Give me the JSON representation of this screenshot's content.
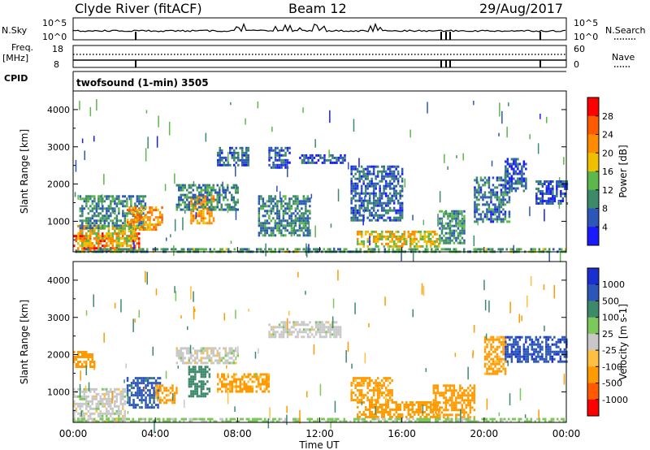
{
  "header": {
    "station": "Clyde River (fitACF)",
    "beam": "Beam 12",
    "date": "29/Aug/2017"
  },
  "top_panels": {
    "nsky_label": "N.Sky",
    "nsky_ticks": [
      "10^5",
      "10^0"
    ],
    "nsearch_label": "N.Search",
    "freq_label": "Freq.",
    "freq_unit": "[MHz]",
    "freq_ticks": [
      "18",
      "8"
    ],
    "nave_label": "Nave",
    "nave_ticks": [
      "60",
      "0"
    ],
    "cpid_label": "CPID",
    "cpid_value": "twofsound (1-min) 3505"
  },
  "colors": {
    "power": [
      "#1a1aff",
      "#2c57b8",
      "#3d8a6a",
      "#5cb84a",
      "#f0c000",
      "#ff8c00",
      "#ff5a00",
      "#ff0000"
    ],
    "velocity": [
      "#ff0000",
      "#ff5a00",
      "#ff9a00",
      "#ffbf40",
      "#c8c8c8",
      "#7cc85a",
      "#3d8a6a",
      "#2c57b8",
      "#1a2fcf"
    ]
  },
  "chart_data": [
    {
      "type": "heatmap",
      "title": "Power",
      "colorbar_label": "Power [dB]",
      "colorbar_ticks": [
        "28",
        "24",
        "20",
        "16",
        "12",
        "8",
        "4"
      ],
      "ylabel": "Slant Range [km]",
      "yticks": [
        "4000",
        "3000",
        "2000",
        "1000"
      ],
      "ylim": [
        180,
        4500
      ],
      "xlim": [
        0,
        24
      ],
      "xlabel": "",
      "features": [
        {
          "t0": 0.0,
          "t1": 3.2,
          "r0": 200,
          "r1": 700,
          "v": 27
        },
        {
          "t0": 0.2,
          "t1": 3.0,
          "r0": 350,
          "r1": 900,
          "v": 18
        },
        {
          "t0": 0.3,
          "t1": 3.5,
          "r0": 800,
          "r1": 1700,
          "v": 10
        },
        {
          "t0": 2.6,
          "t1": 4.3,
          "r0": 750,
          "r1": 1400,
          "v": 22
        },
        {
          "t0": 5.7,
          "t1": 6.8,
          "r0": 950,
          "r1": 1700,
          "v": 21
        },
        {
          "t0": 5.0,
          "t1": 8.0,
          "r0": 1300,
          "r1": 2000,
          "v": 9
        },
        {
          "t0": 7.0,
          "t1": 8.5,
          "r0": 2500,
          "r1": 3000,
          "v": 7
        },
        {
          "t0": 9.5,
          "t1": 10.5,
          "r0": 2450,
          "r1": 3000,
          "v": 6
        },
        {
          "t0": 11.0,
          "t1": 13.2,
          "r0": 2550,
          "r1": 2800,
          "v": 6
        },
        {
          "t0": 9.0,
          "t1": 11.5,
          "r0": 600,
          "r1": 1700,
          "v": 9
        },
        {
          "t0": 13.8,
          "t1": 17.8,
          "r0": 300,
          "r1": 750,
          "v": 18
        },
        {
          "t0": 13.5,
          "t1": 16.0,
          "r0": 1000,
          "r1": 2500,
          "v": 7
        },
        {
          "t0": 17.8,
          "t1": 19.0,
          "r0": 400,
          "r1": 1300,
          "v": 10
        },
        {
          "t0": 19.5,
          "t1": 21.2,
          "r0": 1000,
          "r1": 2200,
          "v": 8
        },
        {
          "t0": 21.0,
          "t1": 22.0,
          "r0": 1800,
          "r1": 2700,
          "v": 6
        },
        {
          "t0": 22.5,
          "t1": 24.0,
          "r0": 1500,
          "r1": 2100,
          "v": 6
        },
        {
          "t0": 0.0,
          "t1": 24.0,
          "r0": 180,
          "r1": 280,
          "v": 12
        }
      ]
    },
    {
      "type": "heatmap",
      "title": "Velocity",
      "colorbar_label": "Velocity [m s-1]",
      "colorbar_ticks": [
        "1000",
        "500",
        "100",
        "25",
        "-25",
        "-100",
        "-500",
        "-1000"
      ],
      "ylabel": "Slant Range [km]",
      "yticks": [
        "4000",
        "3000",
        "2000",
        "1000"
      ],
      "ylim": [
        180,
        4500
      ],
      "xlim": [
        0,
        24
      ],
      "xlabel": "Time UT",
      "xticks": [
        "00:00",
        "04:00",
        "08:00",
        "12:00",
        "16:00",
        "20:00",
        "00:00"
      ],
      "features": [
        {
          "t0": 0.0,
          "t1": 2.5,
          "r0": 200,
          "r1": 1100,
          "v": 0
        },
        {
          "t0": 2.6,
          "t1": 4.2,
          "r0": 600,
          "r1": 1400,
          "v": 700
        },
        {
          "t0": 4.0,
          "t1": 5.0,
          "r0": 700,
          "r1": 1200,
          "v": -150
        },
        {
          "t0": 5.6,
          "t1": 6.6,
          "r0": 900,
          "r1": 1700,
          "v": 200
        },
        {
          "t0": 7.0,
          "t1": 9.5,
          "r0": 1000,
          "r1": 1500,
          "v": -150
        },
        {
          "t0": 9.5,
          "t1": 13.0,
          "r0": 2500,
          "r1": 2900,
          "v": 0
        },
        {
          "t0": 5.0,
          "t1": 8.0,
          "r0": 1800,
          "r1": 2200,
          "v": 0
        },
        {
          "t0": 0.0,
          "t1": 1.0,
          "r0": 1700,
          "r1": 2100,
          "v": -200
        },
        {
          "t0": 13.8,
          "t1": 17.8,
          "r0": 300,
          "r1": 750,
          "v": -300
        },
        {
          "t0": 13.5,
          "t1": 15.5,
          "r0": 800,
          "r1": 1400,
          "v": -150
        },
        {
          "t0": 17.5,
          "t1": 19.5,
          "r0": 300,
          "r1": 1200,
          "v": -200
        },
        {
          "t0": 20.0,
          "t1": 21.0,
          "r0": 1500,
          "r1": 2500,
          "v": -150
        },
        {
          "t0": 21.0,
          "t1": 24.0,
          "r0": 1800,
          "r1": 2500,
          "v": 800
        },
        {
          "t0": 0.0,
          "t1": 24.0,
          "r0": 180,
          "r1": 300,
          "v": 50
        }
      ]
    }
  ]
}
